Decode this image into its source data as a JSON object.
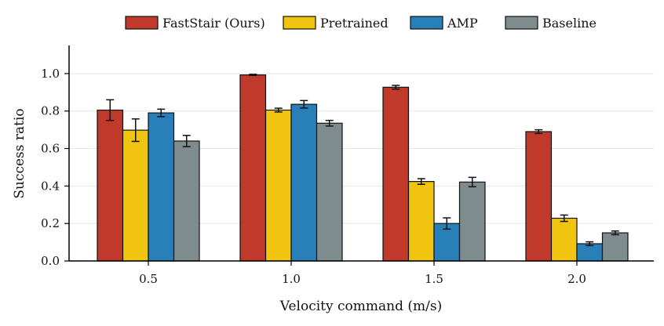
{
  "chart_data": {
    "type": "bar",
    "title": "",
    "xlabel": "Velocity command (m/s)",
    "ylabel": "Success ratio",
    "categories": [
      "0.5",
      "1.0",
      "1.5",
      "2.0"
    ],
    "yticks": [
      "0.0",
      "0.2",
      "0.4",
      "0.6",
      "0.8",
      "1.0"
    ],
    "ylim": [
      0,
      1.15
    ],
    "grid": true,
    "legend_position": "top-center",
    "series": [
      {
        "name": "FastStair (Ours)",
        "color": "#C0392B",
        "values": [
          0.805,
          0.993,
          0.927,
          0.69
        ],
        "errors": [
          0.055,
          0.003,
          0.01,
          0.01
        ]
      },
      {
        "name": "Pretrained",
        "color": "#F1C40F",
        "values": [
          0.698,
          0.805,
          0.424,
          0.228
        ],
        "errors": [
          0.06,
          0.01,
          0.015,
          0.017
        ]
      },
      {
        "name": "AMP",
        "color": "#2980B9",
        "values": [
          0.79,
          0.836,
          0.2,
          0.092
        ],
        "errors": [
          0.02,
          0.02,
          0.03,
          0.01
        ]
      },
      {
        "name": "Baseline",
        "color": "#7F8C8D",
        "values": [
          0.64,
          0.735,
          0.421,
          0.15
        ],
        "errors": [
          0.03,
          0.015,
          0.025,
          0.01
        ]
      }
    ]
  }
}
